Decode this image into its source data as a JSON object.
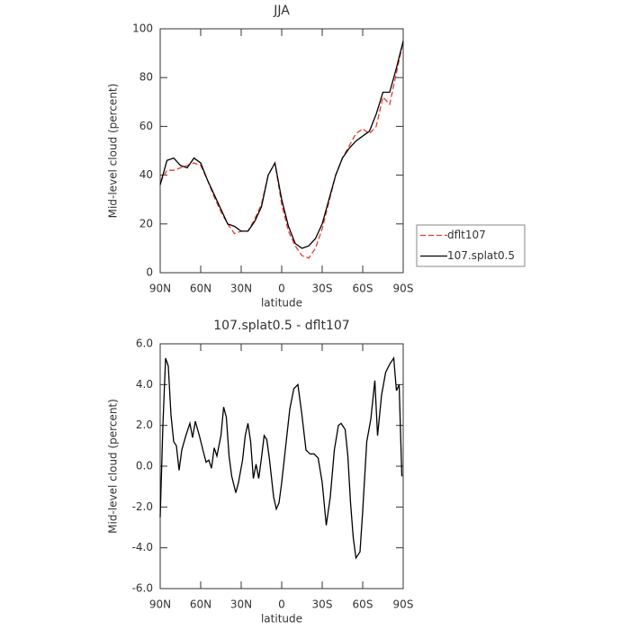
{
  "chart_data": [
    {
      "type": "line",
      "title": "JJA",
      "xlabel": "latitude",
      "ylabel": "Mid-level cloud (percent)",
      "x": [
        90,
        85,
        80,
        75,
        70,
        65,
        60,
        55,
        50,
        45,
        40,
        35,
        30,
        25,
        20,
        15,
        10,
        5,
        0,
        -5,
        -10,
        -15,
        -20,
        -25,
        -30,
        -35,
        -40,
        -45,
        -50,
        -55,
        -60,
        -65,
        -70,
        -75,
        -80,
        -85,
        -90
      ],
      "series": [
        {
          "name": "dflt107",
          "color": "#e8392e",
          "style": "dashed",
          "values": [
            37,
            42,
            42,
            43,
            44,
            45,
            44,
            38,
            31,
            25,
            20,
            16,
            17,
            17,
            22,
            28,
            40,
            45,
            28,
            17,
            11,
            7,
            6,
            10,
            18,
            29,
            40,
            47,
            52,
            57,
            59,
            57,
            60,
            72,
            69,
            82,
            95
          ]
        },
        {
          "name": "107.splat0.5",
          "color": "#000000",
          "style": "solid",
          "values": [
            36,
            46,
            47,
            44,
            43,
            47,
            45,
            38,
            32,
            26,
            20,
            19,
            17,
            17,
            21,
            27,
            40,
            45,
            30,
            19,
            12,
            10,
            11,
            14,
            20,
            30,
            40,
            47,
            51,
            54,
            56,
            58,
            65,
            74,
            74,
            84,
            95
          ]
        }
      ],
      "xlim": [
        90,
        -90
      ],
      "xticks": [
        {
          "value": 90,
          "label": "90N"
        },
        {
          "value": 60,
          "label": "60N"
        },
        {
          "value": 30,
          "label": "30N"
        },
        0,
        {
          "value": -30,
          "label": "30S"
        },
        {
          "value": -60,
          "label": "60S"
        },
        {
          "value": -90,
          "label": "90S"
        }
      ],
      "ylim": [
        0,
        100
      ],
      "yticks": [
        0,
        20,
        40,
        60,
        80,
        100
      ],
      "legend": "right"
    },
    {
      "type": "line",
      "title": "107.splat0.5 - dflt107",
      "xlabel": "latitude",
      "ylabel": "Mid-level cloud (percent)",
      "x": [
        90,
        88,
        86,
        84,
        82,
        80,
        78,
        76,
        74,
        71,
        68,
        66,
        64,
        61,
        58,
        56,
        54,
        52,
        50,
        48,
        45,
        43,
        41,
        39,
        37,
        34,
        32,
        29,
        27,
        25,
        23,
        21,
        19,
        17,
        15,
        13,
        11,
        9,
        6,
        4,
        2,
        0,
        -3,
        -6,
        -9,
        -12,
        -15,
        -18,
        -21,
        -24,
        -27,
        -30,
        -33,
        -36,
        -39,
        -42,
        -44,
        -47,
        -49,
        -51,
        -53,
        -55,
        -58,
        -60,
        -63,
        -66,
        -69,
        -71,
        -74,
        -77,
        -80,
        -83,
        -85,
        -87,
        -89
      ],
      "values": [
        -2.5,
        2,
        5.3,
        4.9,
        2.5,
        1.2,
        1.0,
        -0.2,
        0.8,
        1.5,
        2.1,
        1.4,
        2.2,
        1.5,
        0.7,
        0.2,
        0.3,
        -0.1,
        0.9,
        0.5,
        1.5,
        2.9,
        2.4,
        0.5,
        -0.5,
        -1.3,
        -0.8,
        0.3,
        1.5,
        2.1,
        1.2,
        -0.6,
        0.1,
        -0.6,
        0.4,
        1.5,
        1.3,
        0.3,
        -1.5,
        -2.1,
        -1.8,
        -0.8,
        1.0,
        2.8,
        3.8,
        4.0,
        2.5,
        0.8,
        0.6,
        0.6,
        0.4,
        -0.8,
        -2.9,
        -1.5,
        0.8,
        2.0,
        2.1,
        1.8,
        0.5,
        -1.8,
        -3.5,
        -4.5,
        -4.2,
        -2.2,
        1.2,
        2.3,
        4.2,
        1.5,
        3.5,
        4.6,
        5.0,
        5.3,
        3.7,
        4.0,
        -0.5
      ],
      "color": "#000000",
      "xlim": [
        90,
        -90
      ],
      "xticks": [
        {
          "value": 90,
          "label": "90N"
        },
        {
          "value": 60,
          "label": "60N"
        },
        {
          "value": 30,
          "label": "30N"
        },
        0,
        {
          "value": -30,
          "label": "30S"
        },
        {
          "value": -60,
          "label": "60S"
        },
        {
          "value": -90,
          "label": "90S"
        }
      ],
      "ylim": [
        -6,
        6
      ],
      "yticks": [
        {
          "value": -6,
          "label": "-6.0"
        },
        {
          "value": -4,
          "label": "-4.0"
        },
        {
          "value": -2,
          "label": "-2.0"
        },
        {
          "value": 0,
          "label": "0.0"
        },
        {
          "value": 2,
          "label": "2.0"
        },
        {
          "value": 4,
          "label": "4.0"
        },
        {
          "value": 6,
          "label": "6.0"
        }
      ]
    }
  ]
}
